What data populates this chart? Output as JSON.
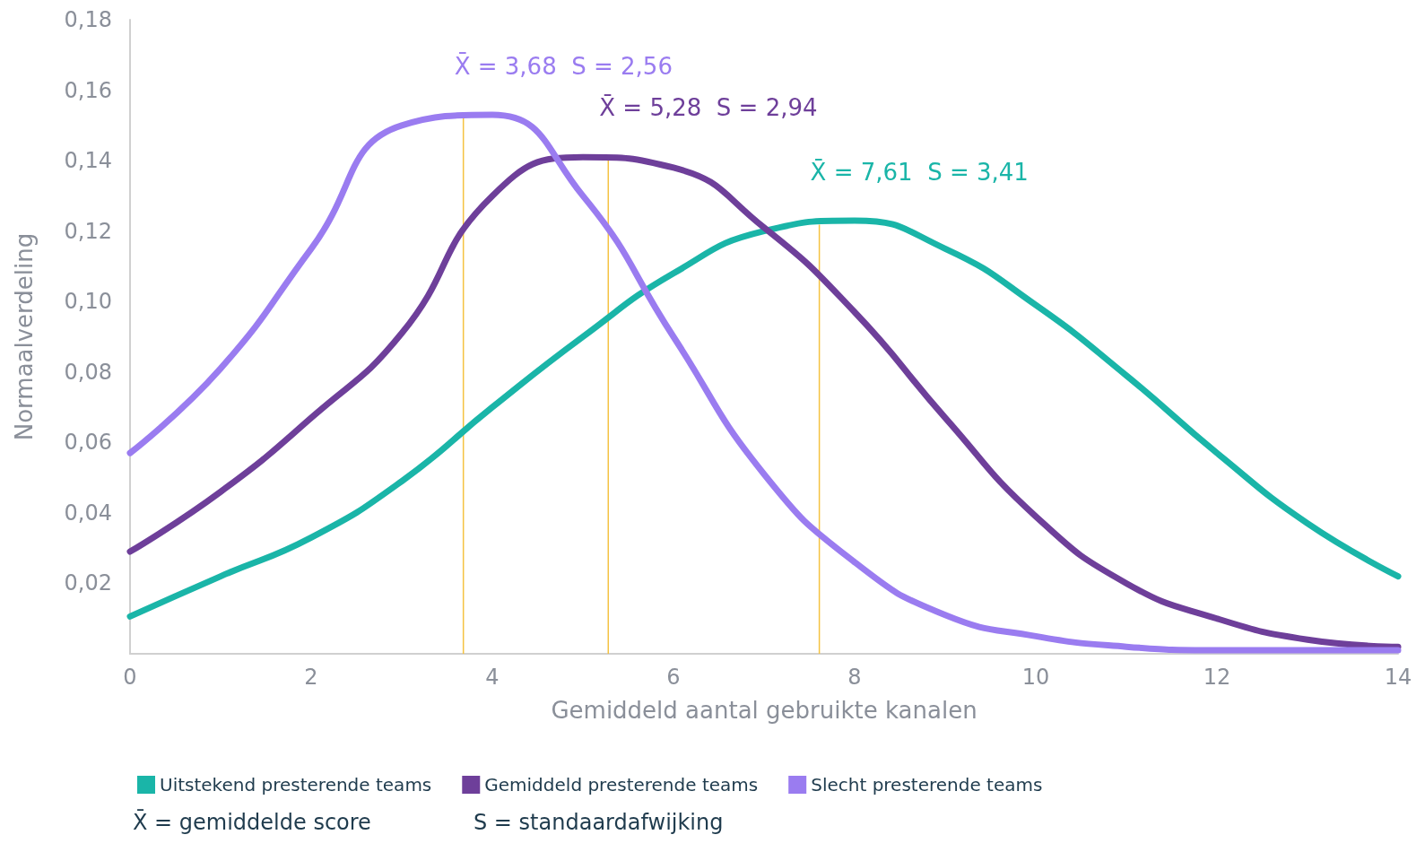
{
  "chart_data": {
    "type": "line",
    "xlabel": "Gemiddeld aantal gebruikte kanalen",
    "ylabel": "Normaalverdeling",
    "xlim": [
      0,
      14
    ],
    "xticks": [
      0,
      2,
      4,
      6,
      8,
      10,
      12,
      14
    ],
    "ylim": [
      0,
      0.18
    ],
    "yticks": [
      {
        "value": 0.02,
        "label": "0,02"
      },
      {
        "value": 0.04,
        "label": "0,04"
      },
      {
        "value": 0.06,
        "label": "0,06"
      },
      {
        "value": 0.08,
        "label": "0,08"
      },
      {
        "value": 0.1,
        "label": "0,10"
      },
      {
        "value": 0.12,
        "label": "0,12"
      },
      {
        "value": 0.14,
        "label": "0,14"
      },
      {
        "value": 0.16,
        "label": "0,16"
      },
      {
        "value": 0.18,
        "label": "0,18"
      }
    ],
    "x": [
      0,
      1,
      2,
      3,
      4,
      5,
      6,
      7,
      8,
      9,
      10,
      11,
      12,
      13,
      14
    ],
    "series": [
      {
        "name": "Uitstekend presterende teams",
        "color": "#1ab5a8",
        "values": [
          0.0106,
          0.022,
          0.033,
          0.049,
          0.07,
          0.09,
          0.108,
          0.12,
          0.123,
          0.115,
          0.099,
          0.079,
          0.057,
          0.037,
          0.022
        ]
      },
      {
        "name": "Gemiddeld presterende teams",
        "color": "#6e3f9a",
        "values": [
          0.029,
          0.046,
          0.067,
          0.091,
          0.13,
          0.141,
          0.138,
          0.121,
          0.097,
          0.067,
          0.039,
          0.02,
          0.01,
          0.004,
          0.002
        ]
      },
      {
        "name": "Slecht presterende teams",
        "color": "#9a7cf0",
        "values": [
          0.057,
          0.081,
          0.115,
          0.15,
          0.153,
          0.13,
          0.09,
          0.051,
          0.026,
          0.011,
          0.005,
          0.002,
          0.001,
          0.001,
          0.001
        ]
      }
    ],
    "ref_lines": [
      {
        "axis": "x",
        "value": 3.68,
        "color": "#f5c242",
        "label": "X̄ = 3,68  S = 2,56"
      },
      {
        "axis": "x",
        "value": 5.28,
        "color": "#f5c242",
        "label": "X̄ = 5,28  S = 2,94"
      },
      {
        "axis": "x",
        "value": 7.61,
        "color": "#f5c242",
        "label": "X̄ = 7,61  S = 3,41"
      }
    ],
    "annotations": [
      "X̄ = gemiddelde score",
      "S = standaardafwijking"
    ],
    "legend": "bottom left",
    "grid": false,
    "marker": "none",
    "line_style": "solid"
  }
}
